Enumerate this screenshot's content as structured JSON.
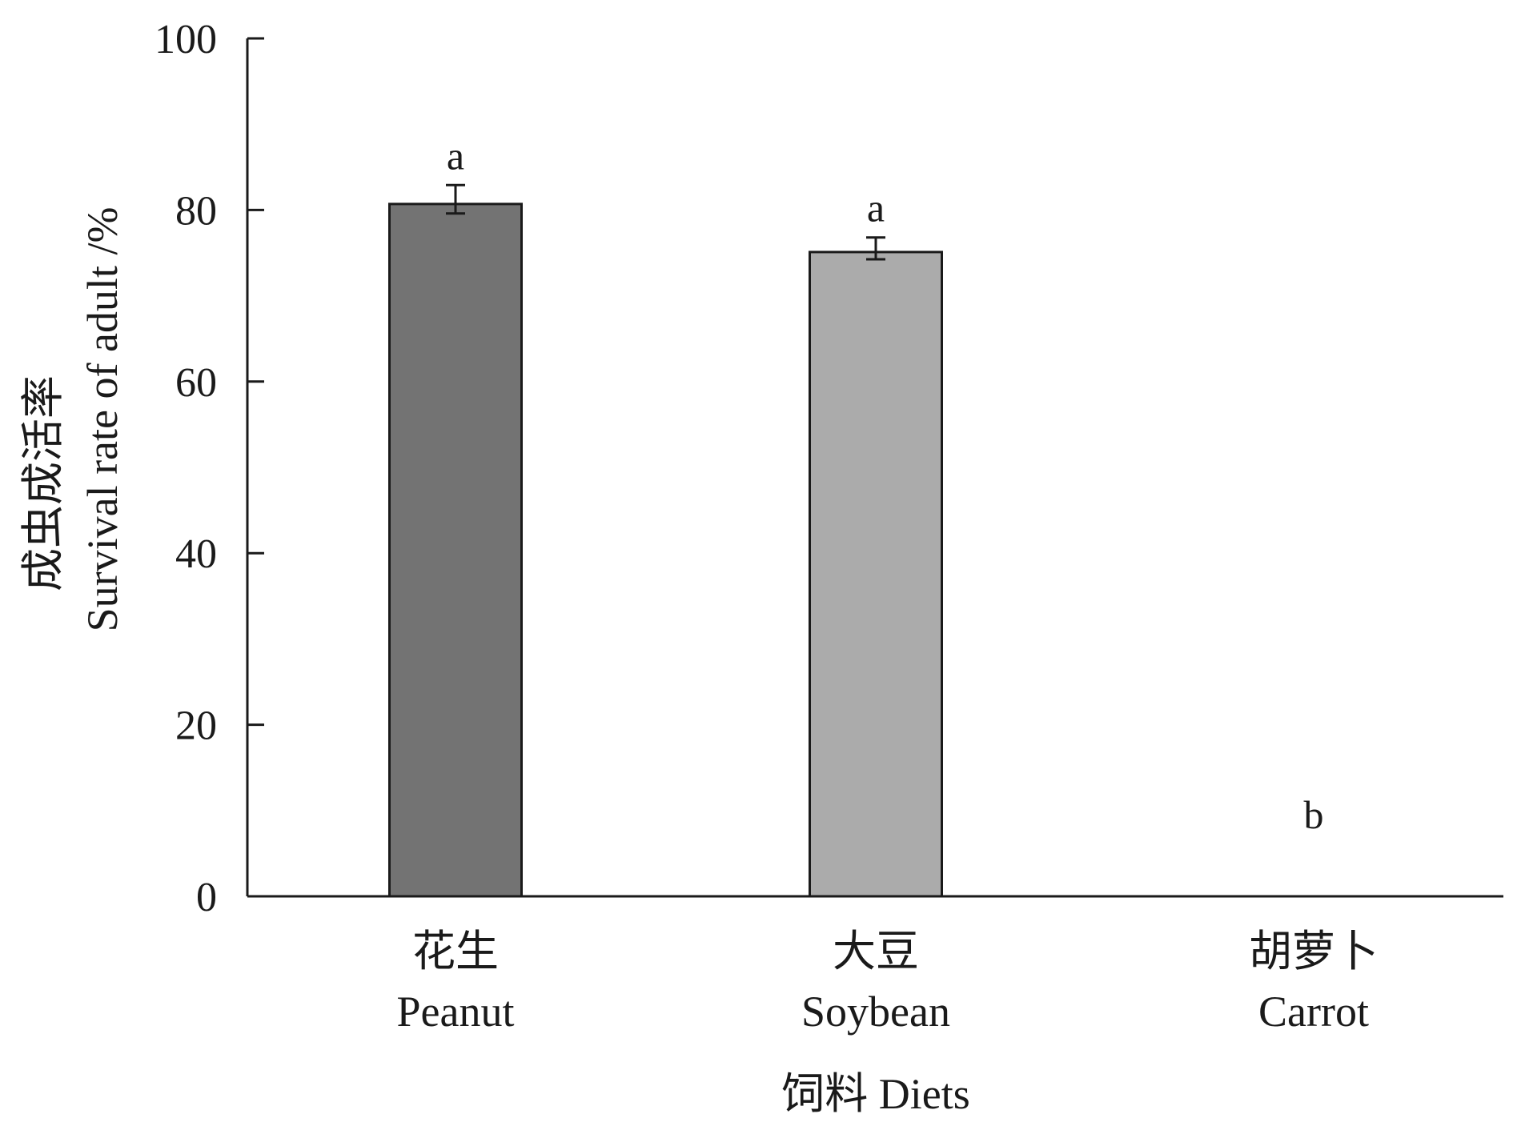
{
  "chart_data": {
    "type": "bar",
    "categories_zh": [
      "花生",
      "大豆",
      "胡萝卜"
    ],
    "categories_en": [
      "Peanut",
      "Soybean",
      "Carrot"
    ],
    "values": [
      80.7,
      75.1,
      0
    ],
    "errors": [
      2.2,
      1.7,
      0
    ],
    "significance": [
      "a",
      "a",
      "b"
    ],
    "bar_colors": [
      "#737373",
      "#ababab",
      "#ffffff"
    ],
    "xlabel": "饲料 Diets",
    "ylabel_zh": "成虫成活率",
    "ylabel_en": "Survival rate of adult /%",
    "ylim": [
      0,
      100
    ],
    "yticks": [
      0,
      20,
      40,
      60,
      80,
      100
    ],
    "grid": false,
    "legend": "none"
  }
}
